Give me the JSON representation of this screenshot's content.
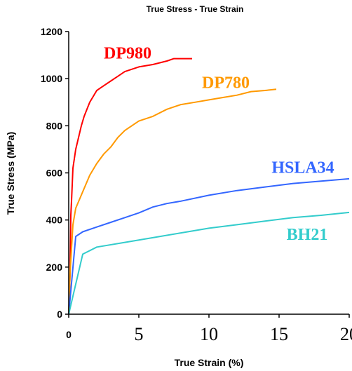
{
  "chart_data": {
    "type": "line",
    "title": "True Stress - True Strain",
    "xlabel": "True Strain (%)",
    "ylabel": "True Stress (MPa)",
    "xlim": [
      0,
      20
    ],
    "ylim": [
      0,
      1200
    ],
    "x_ticks": [
      {
        "value": 0,
        "label": "0"
      },
      {
        "value": 5,
        "label": "5"
      },
      {
        "value": 10,
        "label": "10"
      },
      {
        "value": 15,
        "label": "15"
      },
      {
        "value": 20,
        "label": "20"
      }
    ],
    "y_ticks": [
      {
        "value": 0,
        "label": "0"
      },
      {
        "value": 200,
        "label": "200"
      },
      {
        "value": 400,
        "label": "400"
      },
      {
        "value": 600,
        "label": "600"
      },
      {
        "value": 800,
        "label": "800"
      },
      {
        "value": 1000,
        "label": "1000"
      },
      {
        "value": 1200,
        "label": "1200"
      }
    ],
    "grid": false,
    "series": [
      {
        "name": "DP980",
        "color": "#ff0000",
        "points": [
          [
            0,
            0
          ],
          [
            0.1,
            180
          ],
          [
            0.15,
            420
          ],
          [
            0.2,
            480
          ],
          [
            0.3,
            620
          ],
          [
            0.5,
            700
          ],
          [
            0.7,
            750
          ],
          [
            0.9,
            800
          ],
          [
            1.1,
            840
          ],
          [
            1.3,
            870
          ],
          [
            1.5,
            900
          ],
          [
            1.8,
            930
          ],
          [
            2.0,
            950
          ],
          [
            2.5,
            970
          ],
          [
            3.0,
            990
          ],
          [
            3.5,
            1010
          ],
          [
            4.0,
            1030
          ],
          [
            5.0,
            1050
          ],
          [
            6.0,
            1060
          ],
          [
            7.0,
            1075
          ],
          [
            7.5,
            1085
          ],
          [
            8.8,
            1085
          ]
        ]
      },
      {
        "name": "DP780",
        "color": "#ff9900",
        "points": [
          [
            0,
            0
          ],
          [
            0.1,
            180
          ],
          [
            0.3,
            380
          ],
          [
            0.5,
            450
          ],
          [
            1.0,
            520
          ],
          [
            1.5,
            590
          ],
          [
            2.0,
            640
          ],
          [
            2.5,
            680
          ],
          [
            3.0,
            710
          ],
          [
            3.5,
            750
          ],
          [
            4.0,
            780
          ],
          [
            4.5,
            800
          ],
          [
            5.0,
            820
          ],
          [
            6.0,
            840
          ],
          [
            7.0,
            870
          ],
          [
            8.0,
            890
          ],
          [
            9.0,
            900
          ],
          [
            10.0,
            910
          ],
          [
            11.0,
            920
          ],
          [
            12.0,
            930
          ],
          [
            13.0,
            945
          ],
          [
            14.0,
            950
          ],
          [
            14.8,
            955
          ]
        ]
      },
      {
        "name": "HSLA34",
        "color": "#3366ff",
        "points": [
          [
            0,
            0
          ],
          [
            0.5,
            330
          ],
          [
            1.0,
            350
          ],
          [
            2.0,
            370
          ],
          [
            3.0,
            390
          ],
          [
            4.0,
            410
          ],
          [
            5.0,
            430
          ],
          [
            6.0,
            455
          ],
          [
            7.0,
            470
          ],
          [
            8.0,
            480
          ],
          [
            10.0,
            505
          ],
          [
            12.0,
            525
          ],
          [
            14.0,
            540
          ],
          [
            16.0,
            555
          ],
          [
            18.0,
            565
          ],
          [
            20.0,
            575
          ]
        ]
      },
      {
        "name": "BH21",
        "color": "#33cccc",
        "points": [
          [
            0,
            0
          ],
          [
            1.0,
            255
          ],
          [
            2.0,
            285
          ],
          [
            4.0,
            305
          ],
          [
            6.0,
            325
          ],
          [
            8.0,
            345
          ],
          [
            10.0,
            365
          ],
          [
            12.0,
            380
          ],
          [
            14.0,
            395
          ],
          [
            16.0,
            410
          ],
          [
            18.0,
            420
          ],
          [
            20.0,
            432
          ]
        ]
      }
    ],
    "annotations": [
      "DP980",
      "DP780",
      "HSLA34",
      "BH21"
    ]
  }
}
